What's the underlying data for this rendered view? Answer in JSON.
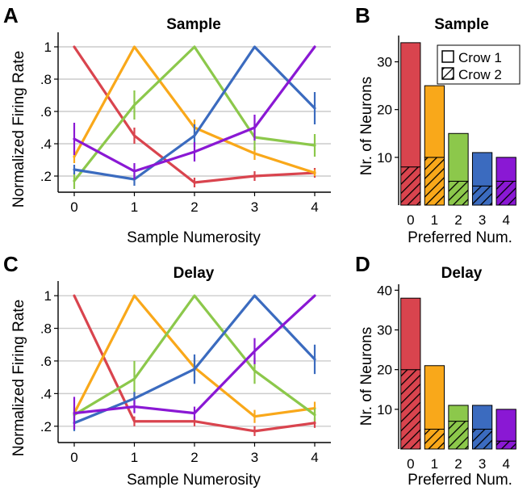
{
  "colors": {
    "n0": "#d9444e",
    "n1": "#f9a81a",
    "n2": "#8cc84b",
    "n3": "#3b6bbf",
    "n4": "#8a18d4",
    "grid": "#cccccc"
  },
  "chart_data": [
    {
      "panel": "A",
      "type": "line",
      "title": "Sample",
      "xlabel": "Sample Numerosity",
      "ylabel": "Normalized Firing Rate",
      "x": [
        0,
        1,
        2,
        3,
        4
      ],
      "x_tick_labels": [
        "0",
        "1",
        "2",
        "3",
        "4"
      ],
      "y_tick_labels": [
        ".2",
        ".4",
        ".6",
        ".8",
        "1"
      ],
      "y_ticks": [
        0.2,
        0.4,
        0.6,
        0.8,
        1.0
      ],
      "ylim": [
        0.1,
        1.07
      ],
      "grid": "horizontal",
      "series": [
        {
          "values": [
            1.0,
            0.45,
            0.16,
            0.2,
            0.22
          ],
          "errors": [
            0,
            0.05,
            0.03,
            0.03,
            0.03
          ]
        },
        {
          "values": [
            0.32,
            1.0,
            0.5,
            0.34,
            0.22
          ],
          "errors": [
            0.04,
            0,
            0.05,
            0.04,
            0.02
          ]
        },
        {
          "values": [
            0.17,
            0.64,
            1.0,
            0.44,
            0.39
          ],
          "errors": [
            0.05,
            0.09,
            0,
            0.08,
            0.07
          ]
        },
        {
          "values": [
            0.24,
            0.18,
            0.45,
            1.0,
            0.62
          ],
          "errors": [
            0.03,
            0.04,
            0.07,
            0,
            0.1
          ]
        },
        {
          "values": [
            0.43,
            0.23,
            0.35,
            0.5,
            1.0
          ],
          "errors": [
            0.1,
            0.05,
            0.06,
            0.08,
            0
          ]
        }
      ]
    },
    {
      "panel": "B",
      "type": "bar",
      "title": "Sample",
      "xlabel": "Preferred Num.",
      "ylabel": "Nr. of Neurons",
      "categories": [
        "0",
        "1",
        "2",
        "3",
        "4"
      ],
      "y_ticks": [
        10,
        20,
        30
      ],
      "ylim": [
        0,
        35.5
      ],
      "legend": {
        "position": "top-right",
        "entries": [
          "Crow 1",
          "Crow 2"
        ]
      },
      "series": [
        {
          "name": "Crow 1",
          "values": [
            26,
            15,
            10,
            7,
            5
          ]
        },
        {
          "name": "Crow 2",
          "values": [
            8,
            10,
            5,
            4,
            5
          ]
        }
      ]
    },
    {
      "panel": "C",
      "type": "line",
      "title": "Delay",
      "xlabel": "Sample Numerosity",
      "ylabel": "Normalized Firing Rate",
      "x": [
        0,
        1,
        2,
        3,
        4
      ],
      "x_tick_labels": [
        "0",
        "1",
        "2",
        "3",
        "4"
      ],
      "y_tick_labels": [
        ".2",
        ".4",
        ".6",
        ".8",
        "1"
      ],
      "y_ticks": [
        0.2,
        0.4,
        0.6,
        0.8,
        1.0
      ],
      "ylim": [
        0.1,
        1.07
      ],
      "grid": "horizontal",
      "series": [
        {
          "values": [
            1.0,
            0.23,
            0.23,
            0.17,
            0.22
          ],
          "errors": [
            0,
            0.03,
            0.03,
            0.03,
            0.03
          ]
        },
        {
          "values": [
            0.28,
            1.0,
            0.56,
            0.26,
            0.31
          ],
          "errors": [
            0.03,
            0,
            0.06,
            0.04,
            0.04
          ]
        },
        {
          "values": [
            0.27,
            0.49,
            1.0,
            0.54,
            0.27
          ],
          "errors": [
            0.05,
            0.11,
            0,
            0.08,
            0.04
          ]
        },
        {
          "values": [
            0.22,
            0.37,
            0.55,
            1.0,
            0.61
          ],
          "errors": [
            0.05,
            0.04,
            0.09,
            0,
            0.09
          ]
        },
        {
          "values": [
            0.28,
            0.32,
            0.28,
            0.66,
            1.0
          ],
          "errors": [
            0.1,
            0.04,
            0.04,
            0.08,
            0
          ]
        }
      ]
    },
    {
      "panel": "D",
      "type": "bar",
      "title": "Delay",
      "xlabel": "Preferred Num.",
      "ylabel": "Nr. of Neurons",
      "categories": [
        "0",
        "1",
        "2",
        "3",
        "4"
      ],
      "y_ticks": [
        10,
        20,
        30,
        40
      ],
      "ylim": [
        0,
        41.5
      ],
      "series": [
        {
          "name": "Crow 1",
          "values": [
            18,
            16,
            4,
            6,
            8
          ]
        },
        {
          "name": "Crow 2",
          "values": [
            20,
            5,
            7,
            5,
            2
          ]
        }
      ]
    }
  ]
}
